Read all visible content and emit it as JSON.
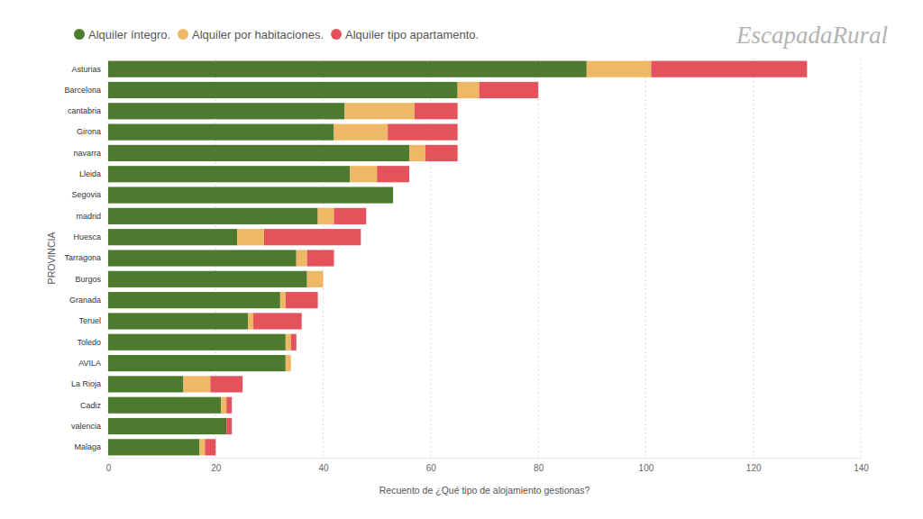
{
  "chart_data": {
    "type": "bar",
    "orientation": "horizontal",
    "stacked": true,
    "grid": true,
    "legend": "top-left",
    "x_label": "Recuento de ¿Qué tipo de alojamiento gestionas?",
    "y_label": "PROVINCIA",
    "annotations": [
      "EscapadaRural"
    ],
    "categories": [
      "Asturias",
      "Barcelona",
      "cantabria",
      "Girona",
      "navarra",
      "Lleida",
      "Segovia",
      "madrid",
      "Huesca",
      "Tarragona",
      "Burgos",
      "Granada",
      "Teruel",
      "Toledo",
      "AVILA",
      "La Rioja",
      "Cadiz",
      "valencia",
      "Malaga"
    ],
    "series": [
      {
        "name": "Alquiler íntegro.",
        "color": "#4e7a2f",
        "values": [
          89,
          65,
          44,
          42,
          56,
          45,
          53,
          39,
          24,
          35,
          37,
          32,
          26,
          33,
          33,
          14,
          21,
          22,
          17
        ]
      },
      {
        "name": "Alquiler por habitaciones.",
        "color": "#efb867",
        "values": [
          12,
          4,
          13,
          10,
          3,
          5,
          0,
          3,
          5,
          2,
          3,
          1,
          1,
          1,
          1,
          5,
          1,
          0,
          1
        ]
      },
      {
        "name": "Alquiler tipo apartamento.",
        "color": "#e4525b",
        "values": [
          29,
          11,
          8,
          13,
          6,
          6,
          0,
          6,
          18,
          5,
          0,
          6,
          9,
          1,
          0,
          6,
          1,
          1,
          2
        ]
      }
    ],
    "xlim": [
      0,
      140
    ],
    "xticks": [
      0,
      20,
      40,
      60,
      80,
      100,
      120,
      140
    ]
  }
}
